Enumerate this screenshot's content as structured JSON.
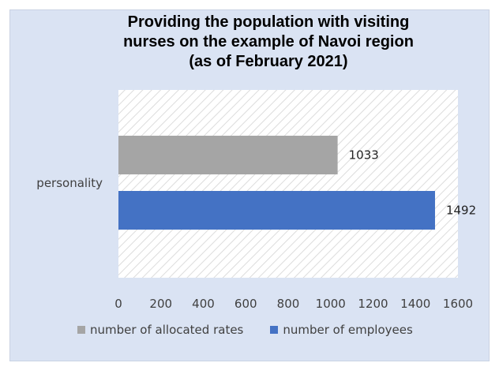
{
  "chart_data": {
    "type": "bar",
    "orientation": "horizontal",
    "title_lines": [
      "Providing the population with visiting",
      "nurses on the example of Navoi region",
      "(as of February 2021)"
    ],
    "categories": [
      "personality"
    ],
    "series": [
      {
        "name": "number of allocated rates",
        "values": [
          1033
        ],
        "color": "#a5a5a5"
      },
      {
        "name": "number of employees",
        "values": [
          1492
        ],
        "color": "#4472c4"
      }
    ],
    "x_ticks": [
      "0",
      "200",
      "400",
      "600",
      "800",
      "1000",
      "1200",
      "1400",
      "1600"
    ],
    "xlim": [
      0,
      1600
    ],
    "grid": false,
    "legend_position": "bottom",
    "plot_background": "diagonal-hatch",
    "background_color": "#dae3f3"
  }
}
